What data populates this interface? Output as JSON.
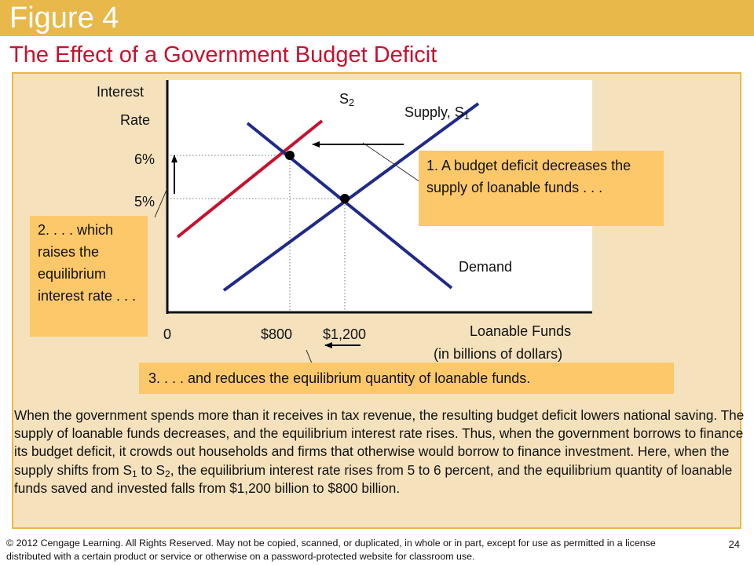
{
  "header": {
    "figure_label": "Figure 4",
    "title": "The Effect of a Government Budget Deficit"
  },
  "colors": {
    "banner": "#e8b84a",
    "title": "#c8102e",
    "panel": "#f5e2bd",
    "callout": "#fdc86a",
    "supply_s1": "#1f2a8a",
    "demand": "#1f2a8a",
    "supply_s2": "#c8102e"
  },
  "chart_data": {
    "type": "line",
    "ylabel_line1": "Interest",
    "ylabel_line2": "Rate",
    "xlabel_line1": "Loanable Funds",
    "xlabel_line2": "(in billions of dollars)",
    "origin_label": "0",
    "y_ticks": [
      {
        "value": 5,
        "label": "5%"
      },
      {
        "value": 6,
        "label": "6%"
      }
    ],
    "x_ticks": [
      {
        "value": 800,
        "label": "$800"
      },
      {
        "value": 1200,
        "label": "$1,200"
      }
    ],
    "curves": [
      {
        "id": "supply-s1",
        "label": "Supply, S",
        "label_sub": "1"
      },
      {
        "id": "supply-s2",
        "label": "S",
        "label_sub": "2"
      },
      {
        "id": "demand",
        "label": "Demand"
      }
    ],
    "equilibria": [
      {
        "id": "initial",
        "quantity": 1200,
        "rate": 5
      },
      {
        "id": "new",
        "quantity": 800,
        "rate": 6
      }
    ]
  },
  "callouts": {
    "c1": "1. A budget deficit decreases the supply of loanable funds . . .",
    "c2": "2. . . . which raises the equilibrium interest rate . . .",
    "c3": "3. . . . and reduces the equilibrium quantity of loanable funds."
  },
  "caption": {
    "part1": "When the government spends more than it receives in tax revenue, the resulting budget deficit lowers national saving. The supply of loanable funds decreases, and the equilibrium interest rate rises. Thus, when the government borrows to finance its budget deficit, it crowds out households and firms that otherwise would borrow to finance investment. Here, when the supply shifts from S",
    "sub1": "1",
    "part2": " to S",
    "sub2": "2",
    "part3": ", the equilibrium interest rate rises from 5 to 6 percent, and the equilibrium quantity of loanable funds saved and invested falls from $1,200 billion to $800 billion."
  },
  "footer": {
    "copyright": "© 2012 Cengage Learning. All Rights Reserved. May not be copied, scanned, or duplicated, in whole or in part, except for use as permitted in a license distributed with a certain product or service or otherwise on a password-protected website for classroom use.",
    "page_number": "24"
  }
}
